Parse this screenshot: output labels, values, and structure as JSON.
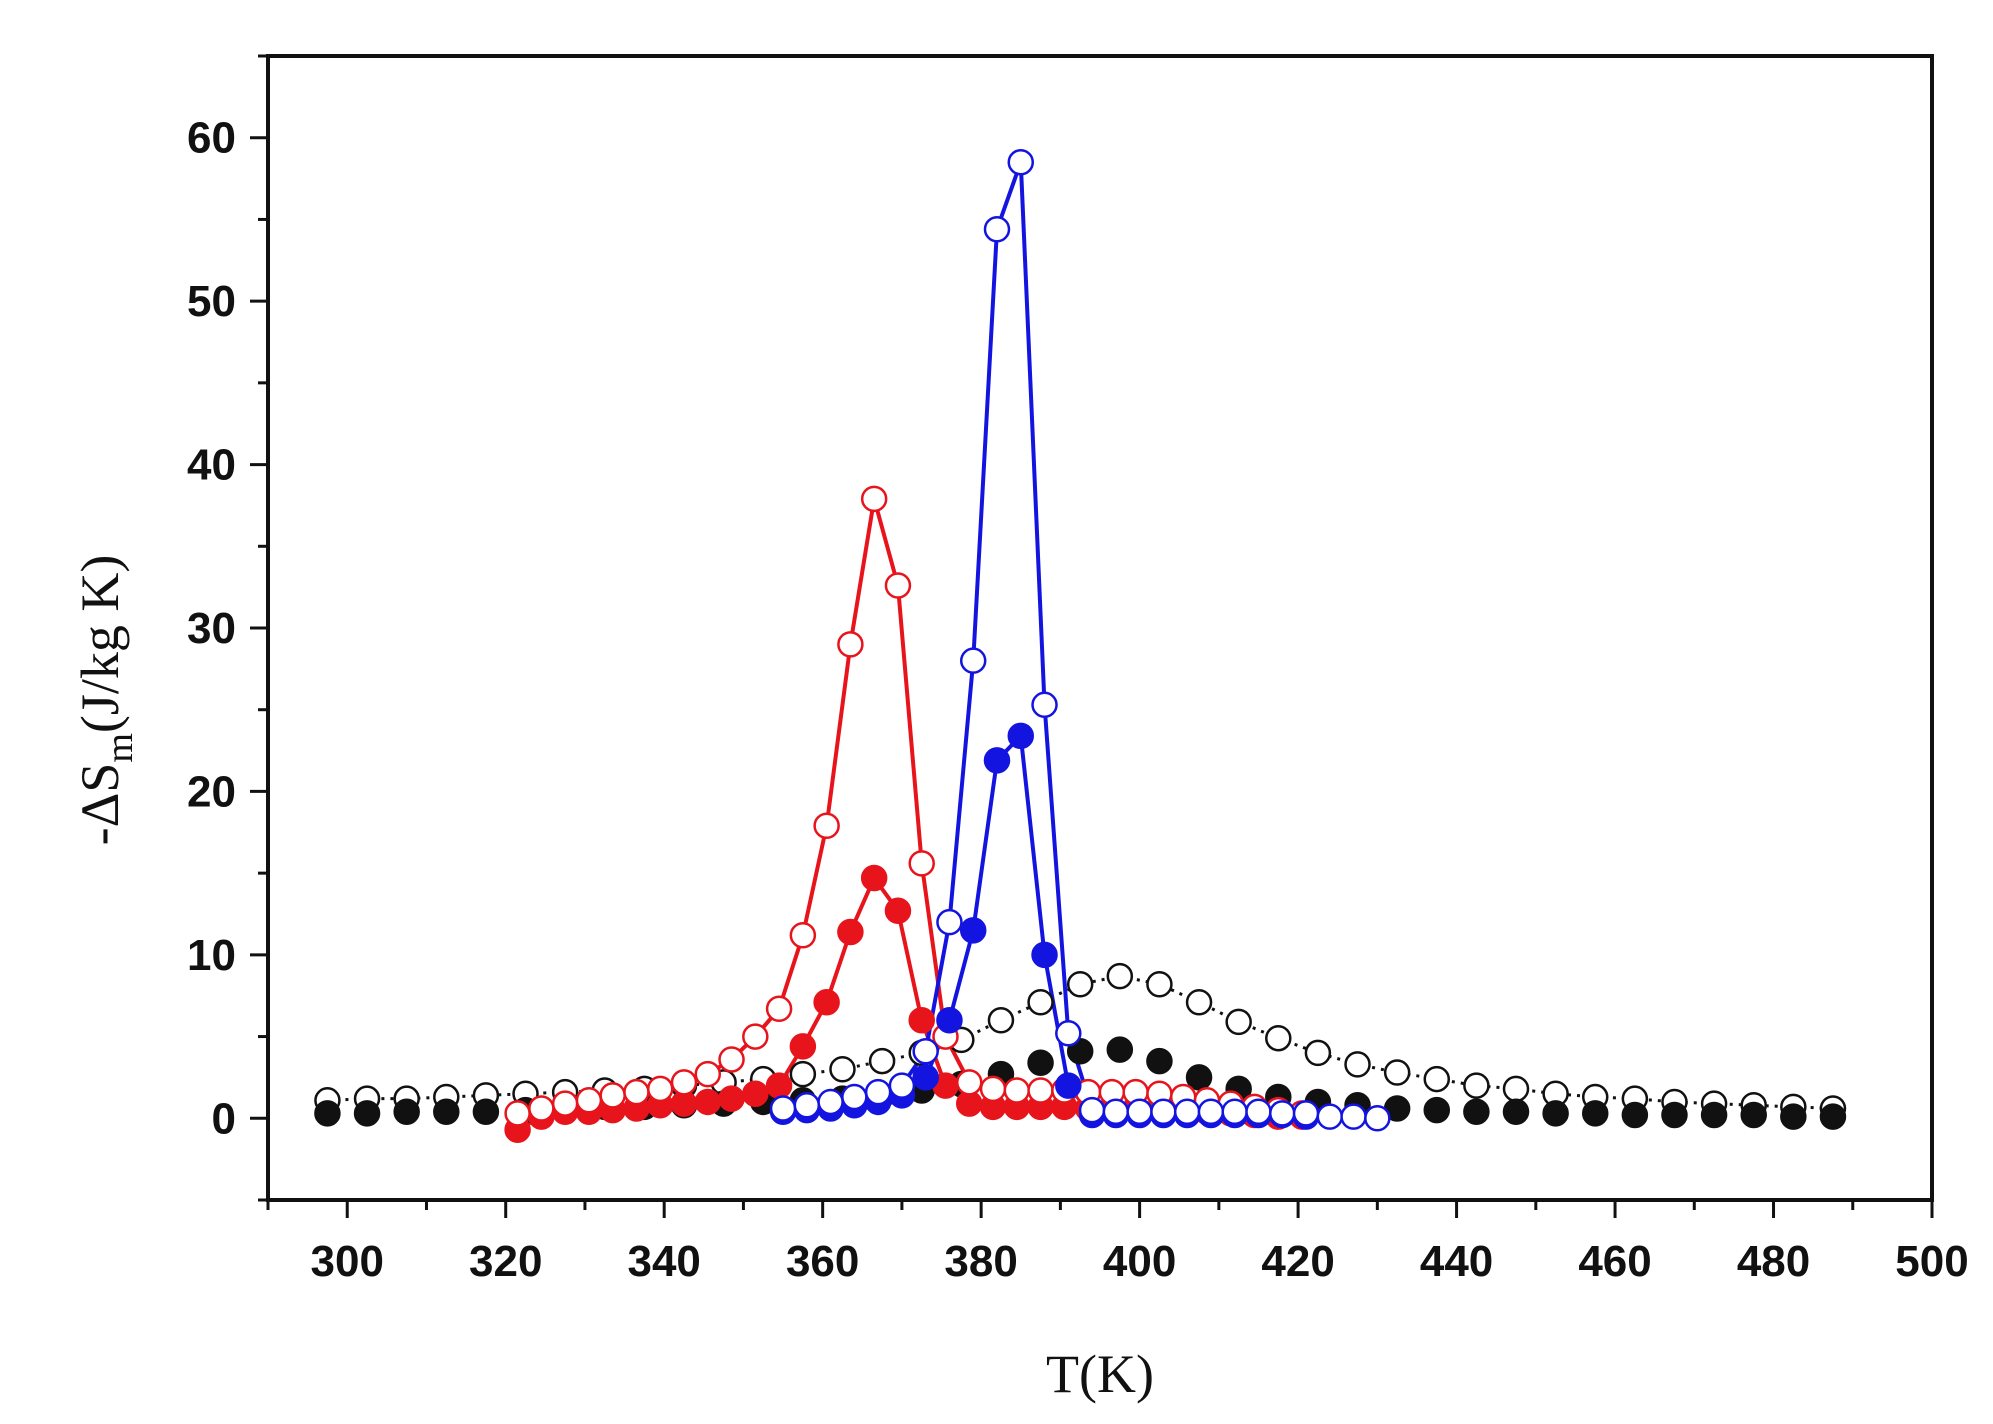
{
  "chart_data": {
    "type": "line",
    "title": "",
    "xlabel": "T(K)",
    "ylabel": {
      "prefix": "-ΔS",
      "subscript": "m",
      "suffix": "(J/kg K)"
    },
    "xlim": [
      290,
      500
    ],
    "ylim": [
      -5,
      65
    ],
    "xticks": [
      300,
      320,
      340,
      360,
      380,
      400,
      420,
      440,
      460,
      480,
      500
    ],
    "yticks": [
      0,
      10,
      20,
      30,
      40,
      50,
      60
    ],
    "grid": false,
    "legend": "none",
    "series": [
      {
        "color": "#e8141c",
        "marker": "open",
        "line": "solid",
        "x": [
          321.5,
          324.5,
          327.5,
          330.5,
          333.5,
          336.5,
          339.5,
          342.5,
          345.5,
          348.5,
          351.5,
          354.5,
          357.5,
          360.5,
          363.5,
          366.5,
          369.5,
          372.5,
          375.5,
          378.5,
          381.5,
          384.5,
          387.5,
          390.5,
          393.5,
          396.5,
          399.5,
          402.5,
          405.5,
          408.5,
          411.5,
          414.5,
          417.5,
          420.5
        ],
        "y": [
          0.3,
          0.6,
          0.9,
          1.1,
          1.4,
          1.6,
          1.8,
          2.2,
          2.7,
          3.6,
          5.0,
          6.7,
          11.2,
          17.9,
          29.0,
          37.9,
          32.6,
          15.6,
          5.0,
          2.2,
          1.8,
          1.7,
          1.7,
          1.7,
          1.6,
          1.6,
          1.6,
          1.5,
          1.3,
          1.1,
          0.9,
          0.7,
          0.5,
          0.3
        ]
      },
      {
        "color": "#e8141c",
        "marker": "filled",
        "line": "solid",
        "x": [
          321.5,
          324.5,
          327.5,
          330.5,
          333.5,
          336.5,
          339.5,
          342.5,
          345.5,
          348.5,
          351.5,
          354.5,
          357.5,
          360.5,
          363.5,
          366.5,
          369.5,
          372.5,
          375.5,
          378.5,
          381.5,
          384.5,
          387.5,
          390.5,
          393.5,
          396.5,
          399.5,
          402.5,
          405.5,
          408.5,
          411.5,
          414.5,
          417.5,
          420.5
        ],
        "y": [
          -0.7,
          0.1,
          0.4,
          0.4,
          0.5,
          0.6,
          0.8,
          0.9,
          1.0,
          1.2,
          1.5,
          2.0,
          4.4,
          7.1,
          11.4,
          14.7,
          12.7,
          6.0,
          2.0,
          0.9,
          0.7,
          0.7,
          0.7,
          0.7,
          0.6,
          0.6,
          0.6,
          0.6,
          0.5,
          0.4,
          0.3,
          0.2,
          0.1,
          0.1
        ]
      },
      {
        "color": "#1414e0",
        "marker": "open",
        "line": "solid",
        "x": [
          355,
          358,
          361,
          364,
          367,
          370,
          373,
          376,
          379,
          382,
          385,
          388,
          391,
          394,
          397,
          400,
          403,
          406,
          409,
          412,
          415,
          418,
          421,
          424,
          427,
          430
        ],
        "y": [
          0.6,
          0.8,
          1.0,
          1.3,
          1.6,
          2.0,
          4.1,
          12.0,
          28.0,
          54.4,
          58.5,
          25.3,
          5.2,
          0.5,
          0.4,
          0.4,
          0.4,
          0.4,
          0.4,
          0.4,
          0.4,
          0.3,
          0.3,
          0.1,
          0.1,
          0.0
        ]
      },
      {
        "color": "#1414e0",
        "marker": "filled",
        "line": "solid",
        "x": [
          355,
          358,
          361,
          364,
          367,
          370,
          373,
          376,
          379,
          382,
          385,
          388,
          391,
          394,
          397,
          400,
          403,
          406,
          409,
          412,
          415,
          418,
          421
        ],
        "y": [
          0.4,
          0.5,
          0.6,
          0.8,
          1.0,
          1.4,
          2.5,
          6.0,
          11.5,
          21.9,
          23.4,
          10.0,
          2.0,
          0.2,
          0.2,
          0.2,
          0.2,
          0.2,
          0.2,
          0.2,
          0.2,
          0.2,
          0.1
        ]
      },
      {
        "color": "#111111",
        "marker": "open",
        "line": "dotted",
        "x": [
          297.5,
          302.5,
          307.5,
          312.5,
          317.5,
          322.5,
          327.5,
          332.5,
          337.5,
          342.5,
          347.5,
          352.5,
          357.5,
          362.5,
          367.5,
          372.5,
          377.5,
          382.5,
          387.5,
          392.5,
          397.5,
          402.5,
          407.5,
          412.5,
          417.5,
          422.5,
          427.5,
          432.5,
          437.5,
          442.5,
          447.5,
          452.5,
          457.5,
          462.5,
          467.5,
          472.5,
          477.5,
          482.5,
          487.5
        ],
        "y": [
          1.1,
          1.2,
          1.2,
          1.3,
          1.4,
          1.5,
          1.6,
          1.7,
          1.8,
          2.0,
          2.2,
          2.4,
          2.7,
          3.0,
          3.5,
          4.0,
          4.8,
          6.0,
          7.1,
          8.2,
          8.7,
          8.2,
          7.1,
          5.9,
          4.9,
          4.0,
          3.3,
          2.8,
          2.4,
          2.0,
          1.8,
          1.5,
          1.3,
          1.2,
          1.0,
          0.9,
          0.8,
          0.7,
          0.6
        ]
      },
      {
        "color": "#111111",
        "marker": "filled",
        "line": "none",
        "x": [
          297.5,
          302.5,
          307.5,
          312.5,
          317.5,
          322.5,
          327.5,
          332.5,
          337.5,
          342.5,
          347.5,
          352.5,
          357.5,
          362.5,
          367.5,
          372.5,
          377.5,
          382.5,
          387.5,
          392.5,
          397.5,
          402.5,
          407.5,
          412.5,
          417.5,
          422.5,
          427.5,
          432.5,
          437.5,
          442.5,
          447.5,
          452.5,
          457.5,
          462.5,
          467.5,
          472.5,
          477.5,
          482.5,
          487.5
        ],
        "y": [
          0.3,
          0.3,
          0.4,
          0.4,
          0.4,
          0.5,
          0.6,
          0.7,
          0.7,
          0.8,
          0.9,
          1.0,
          1.1,
          1.2,
          1.4,
          1.7,
          2.1,
          2.7,
          3.4,
          4.1,
          4.2,
          3.5,
          2.5,
          1.8,
          1.3,
          1.0,
          0.8,
          0.6,
          0.5,
          0.4,
          0.4,
          0.3,
          0.3,
          0.2,
          0.2,
          0.2,
          0.2,
          0.1,
          0.1
        ]
      }
    ]
  }
}
